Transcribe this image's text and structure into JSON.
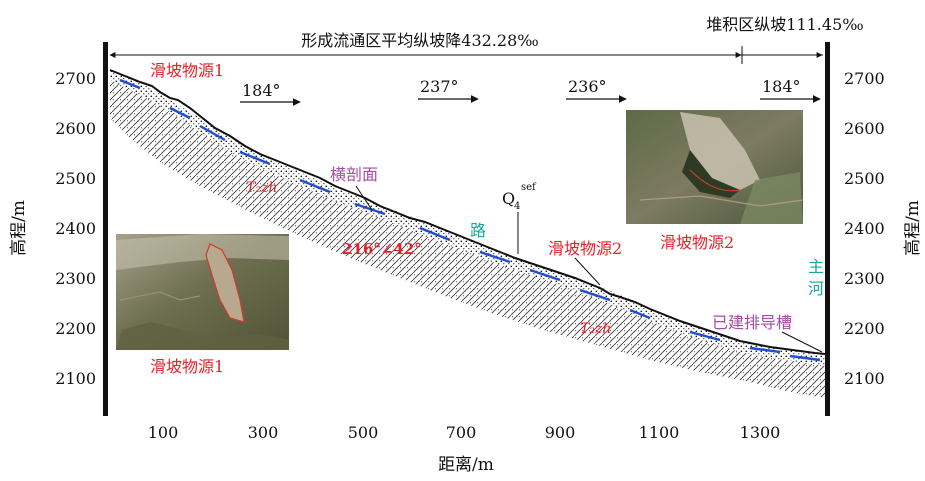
{
  "figure": {
    "zone_labels": {
      "flow_zone": "形成流通区平均纵坡降432.28‰",
      "accumulation_zone": "堆积区纵坡111.45‰"
    },
    "y_axis": {
      "label_left": "高程/m",
      "label_right": "高程/m",
      "ticks": [
        "2700",
        "2600",
        "2500",
        "2400",
        "2300",
        "2200",
        "2100"
      ]
    },
    "x_axis": {
      "label": "距离/m",
      "ticks": [
        "100",
        "300",
        "500",
        "700",
        "900",
        "1100",
        "1300"
      ]
    },
    "directions": [
      "184°",
      "237°",
      "236°",
      "184°"
    ],
    "annotations": {
      "landslide_source_1": "滑坡物源1",
      "formation_1": "T₂zh",
      "cross_section": "横剖面",
      "bedding_attitude": "216°∠42°",
      "road": "路",
      "deposit_base": "Q",
      "deposit_sub": "4",
      "deposit_sup": "sef",
      "landslide_source_2": "滑坡物源2",
      "formation_2": "T₂zh",
      "main_river": "主河",
      "drain_channel": "已建排导槽"
    },
    "photos": [
      {
        "caption": "滑坡物源1"
      },
      {
        "caption": "滑坡物源2"
      }
    ],
    "colors": {
      "red_label": "#e8202a",
      "purple_label": "#a64ca6",
      "teal_label": "#1aa79a",
      "blue_line": "#1f4fd1",
      "ground_line": "#111111"
    }
  }
}
